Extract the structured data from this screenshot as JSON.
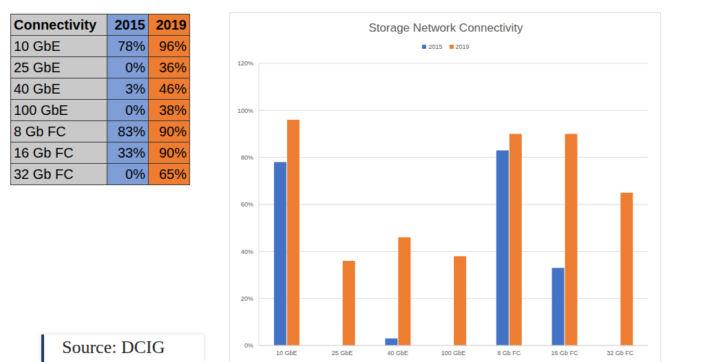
{
  "chart_data": {
    "type": "bar",
    "title": "Storage Network Connectivity",
    "categories": [
      "10 GbE",
      "25 GbE",
      "40 GbE",
      "100 GbE",
      "8 Gb FC",
      "16 Gb FC",
      "32 Gb FC"
    ],
    "series": [
      {
        "name": "2015",
        "color": "#4472c4",
        "values": [
          78,
          0,
          3,
          0,
          83,
          33,
          0
        ]
      },
      {
        "name": "2019",
        "color": "#ed7d31",
        "values": [
          96,
          36,
          46,
          38,
          90,
          90,
          65
        ]
      }
    ],
    "ylim": [
      0,
      120
    ],
    "yticks": [
      {
        "value": 0,
        "label": "0%"
      },
      {
        "value": 20,
        "label": "20%"
      },
      {
        "value": 40,
        "label": "40%"
      },
      {
        "value": 60,
        "label": "60%"
      },
      {
        "value": 80,
        "label": "80%"
      },
      {
        "value": 100,
        "label": "100%"
      },
      {
        "value": 120,
        "label": "120%"
      }
    ],
    "grid": true,
    "legend": "top"
  },
  "table": {
    "header": [
      "Connectivity",
      "2015",
      "2019"
    ],
    "rows": [
      [
        "10 GbE",
        "78%",
        "96%"
      ],
      [
        "25 GbE",
        "0%",
        "36%"
      ],
      [
        "40 GbE",
        "3%",
        "46%"
      ],
      [
        "100 GbE",
        "0%",
        "38%"
      ],
      [
        "8 Gb FC",
        "83%",
        "90%"
      ],
      [
        "16 Gb FC",
        "33%",
        "90%"
      ],
      [
        "32 Gb FC",
        "0%",
        "65%"
      ]
    ]
  },
  "source": "Source: DCIG"
}
